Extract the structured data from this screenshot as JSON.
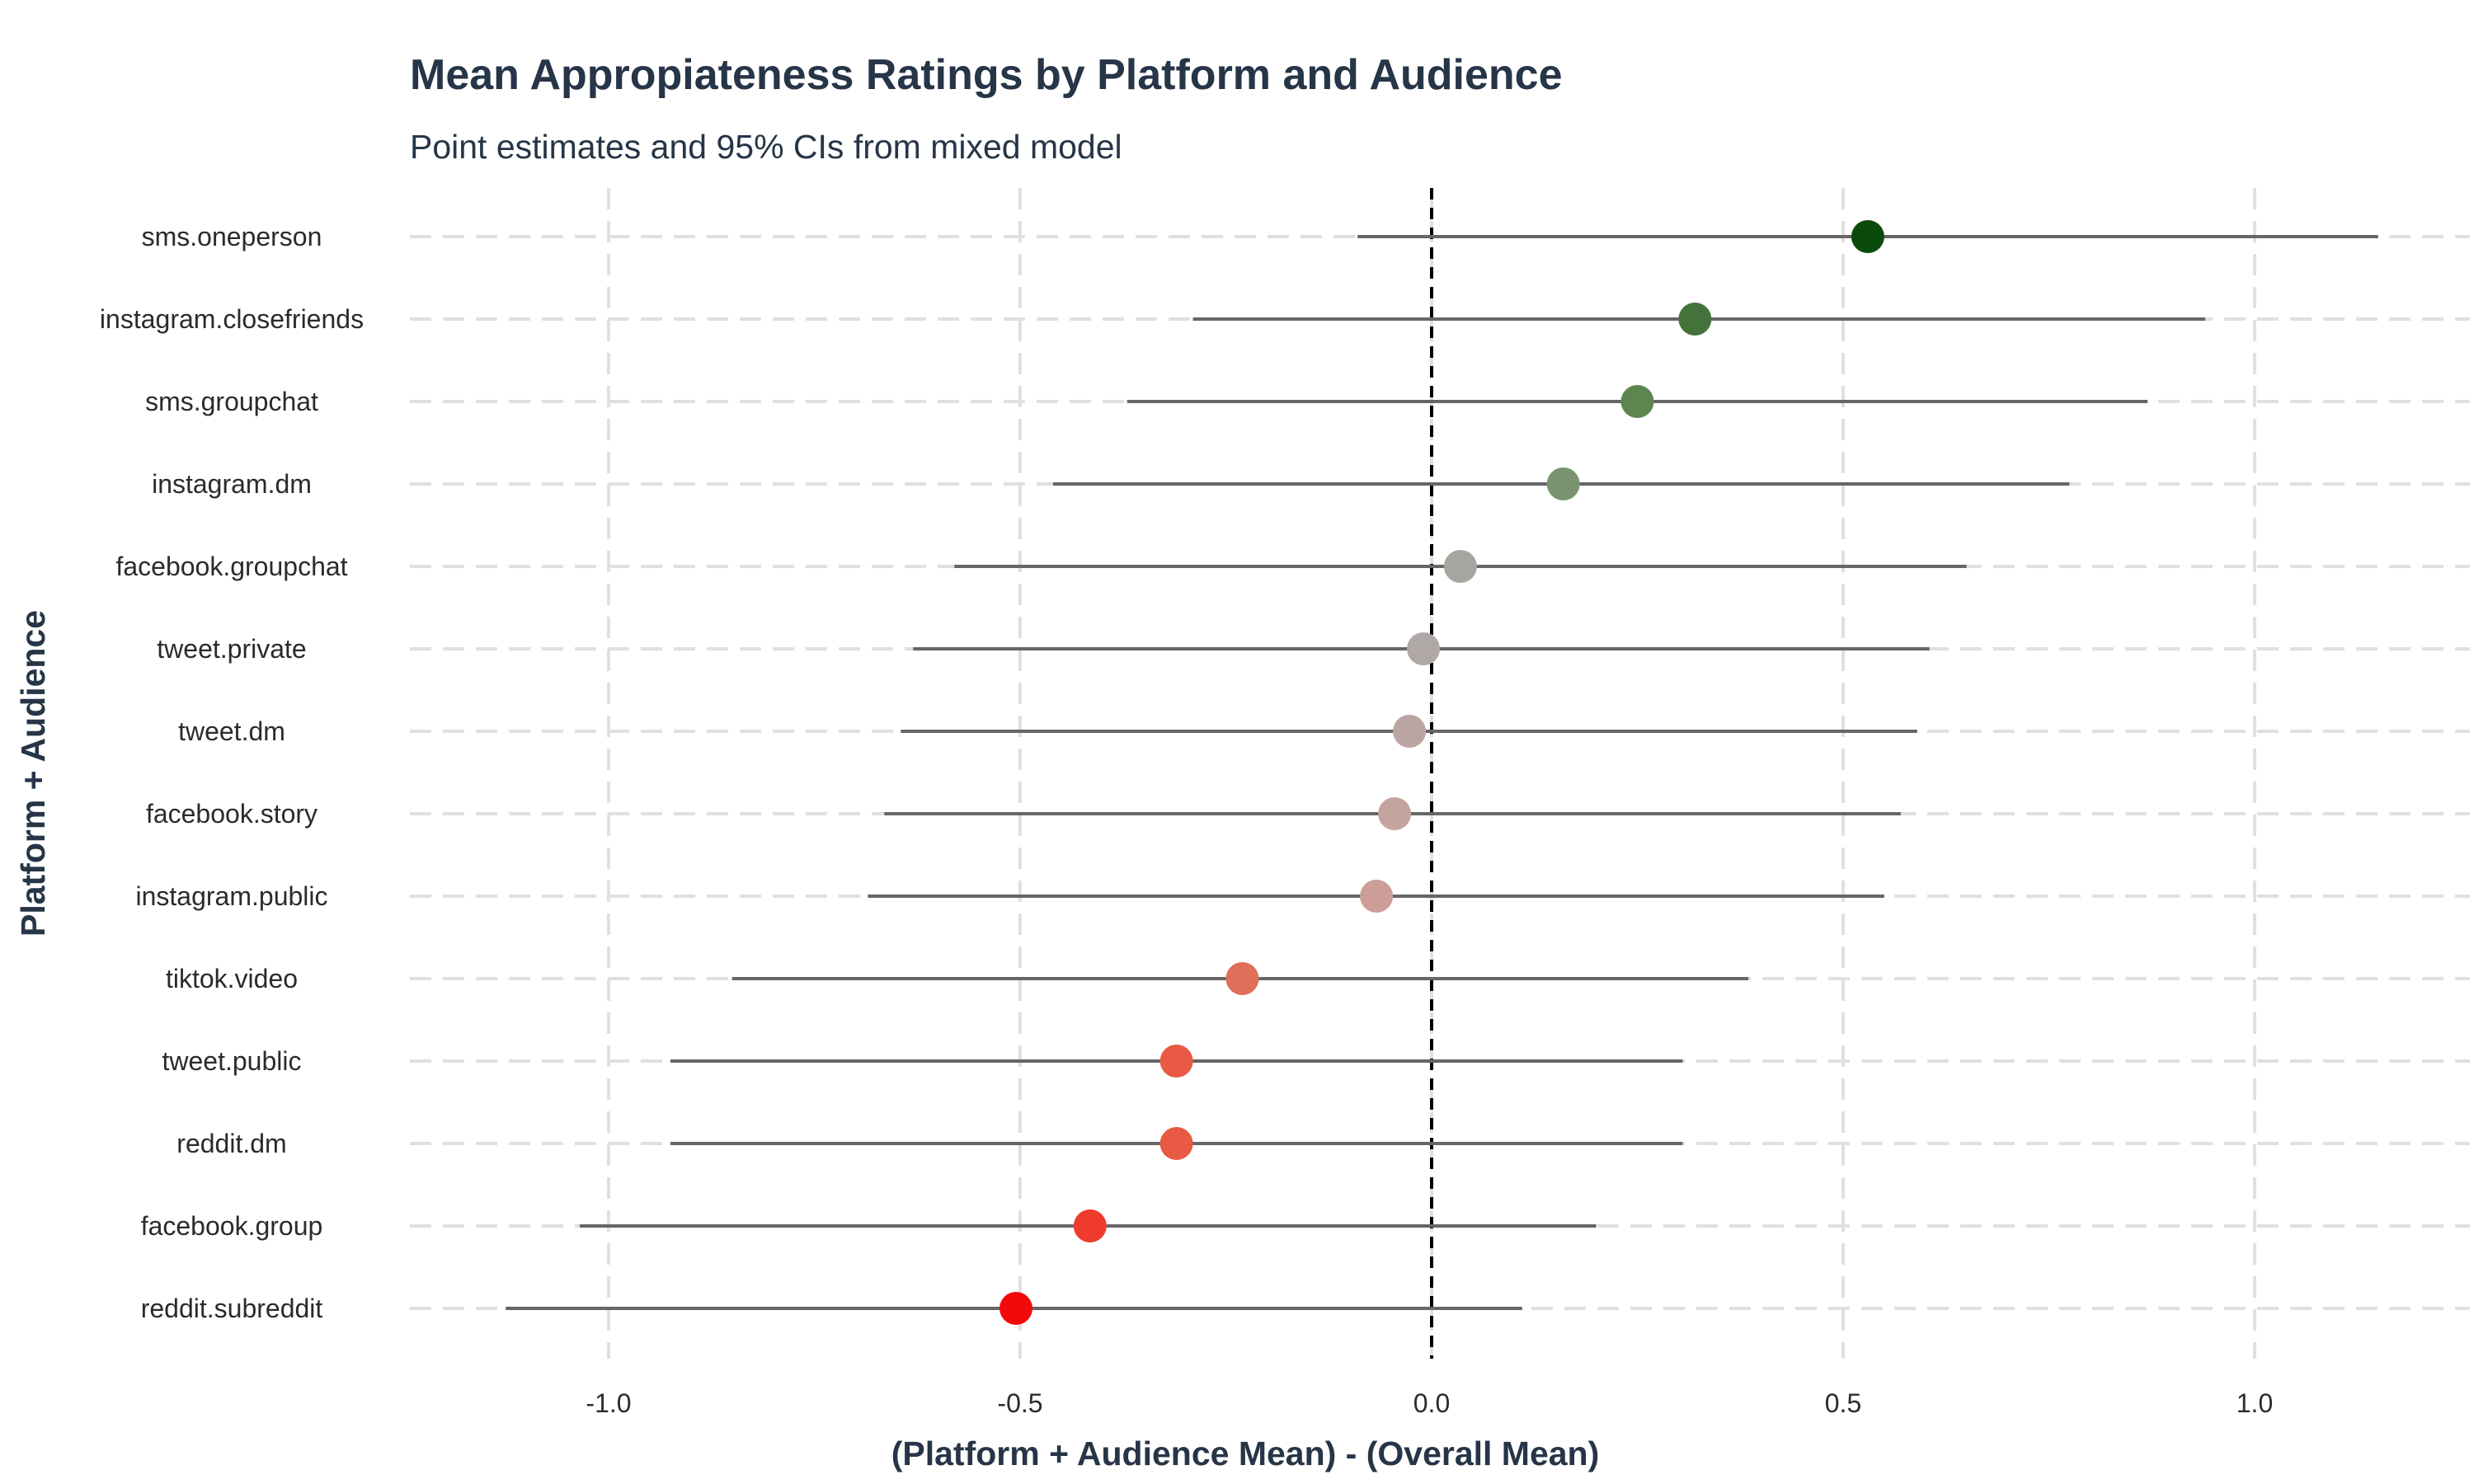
{
  "chart_data": {
    "type": "scatter",
    "title": "Mean Appropiateness Ratings by Platform and Audience",
    "subtitle": "Point estimates and 95% CIs from mixed model",
    "xlabel": "(Platform + Audience Mean) - (Overall Mean)",
    "ylabel": "Platform + Audience",
    "xlim": [
      -1.25,
      1.25
    ],
    "x_ticks": [
      -1.0,
      -0.5,
      0.0,
      0.5,
      1.0
    ],
    "x_tick_labels": [
      "-1.0",
      "-0.5",
      "0.0",
      "0.5",
      "1.0"
    ],
    "reference_line": 0.0,
    "grid": true,
    "categories": [
      "sms.oneperson",
      "instagram.closefriends",
      "sms.groupchat",
      "instagram.dm",
      "facebook.groupchat",
      "tweet.private",
      "tweet.dm",
      "facebook.story",
      "instagram.public",
      "tiktok.video",
      "tweet.public",
      "reddit.dm",
      "facebook.group",
      "reddit.subreddit"
    ],
    "estimates": [
      0.53,
      0.32,
      0.25,
      0.16,
      0.035,
      -0.01,
      -0.027,
      -0.045,
      -0.067,
      -0.23,
      -0.31,
      -0.31,
      -0.415,
      -0.505
    ],
    "ci_lower": [
      -0.09,
      -0.29,
      -0.37,
      -0.46,
      -0.58,
      -0.63,
      -0.645,
      -0.665,
      -0.685,
      -0.85,
      -0.925,
      -0.925,
      -1.035,
      -1.125
    ],
    "ci_upper": [
      1.15,
      0.94,
      0.87,
      0.775,
      0.65,
      0.605,
      0.59,
      0.57,
      0.55,
      0.385,
      0.305,
      0.305,
      0.2,
      0.11
    ],
    "point_colors": [
      "#0c4a0c",
      "#43733a",
      "#5c8550",
      "#7a9470",
      "#a4a6a0",
      "#b0a8a6",
      "#bba5a2",
      "#c5a39e",
      "#cc9e97",
      "#df6f58",
      "#e85a43",
      "#e85a43",
      "#ee3b2b",
      "#f00a0a"
    ],
    "colors": {
      "ci_line": "#666666",
      "grid": "#e0e0e0",
      "reference": "#000000",
      "title": "#263547"
    }
  }
}
